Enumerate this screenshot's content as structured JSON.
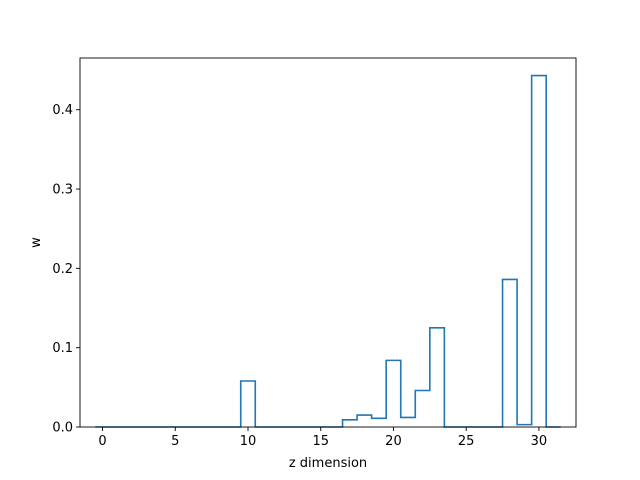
{
  "chart_data": {
    "type": "bar",
    "style": "step-histogram",
    "x": [
      0,
      1,
      2,
      3,
      4,
      5,
      6,
      7,
      8,
      9,
      10,
      11,
      12,
      13,
      14,
      15,
      16,
      17,
      18,
      19,
      20,
      21,
      22,
      23,
      24,
      25,
      26,
      27,
      28,
      29,
      30,
      31
    ],
    "values": [
      0,
      0,
      0,
      0,
      0,
      0,
      0,
      0,
      0,
      0,
      0.058,
      0,
      0,
      0,
      0,
      0,
      0,
      0.009,
      0.015,
      0.011,
      0.084,
      0.012,
      0.046,
      0.125,
      0,
      0,
      0,
      0,
      0.186,
      0.003,
      0.443,
      0
    ],
    "xlabel": "z dimension",
    "ylabel": "w",
    "xlim": [
      -1.55,
      32.55
    ],
    "ylim": [
      0,
      0.4652
    ],
    "xticks": [
      0,
      5,
      10,
      15,
      20,
      25,
      30
    ],
    "yticks": [
      0.0,
      0.1,
      0.2,
      0.3,
      0.4
    ],
    "xtick_labels": [
      "0",
      "5",
      "10",
      "15",
      "20",
      "25",
      "30"
    ],
    "ytick_labels": [
      "0.0",
      "0.1",
      "0.2",
      "0.3",
      "0.4"
    ],
    "grid": false,
    "line_color": "#1f77b4"
  }
}
